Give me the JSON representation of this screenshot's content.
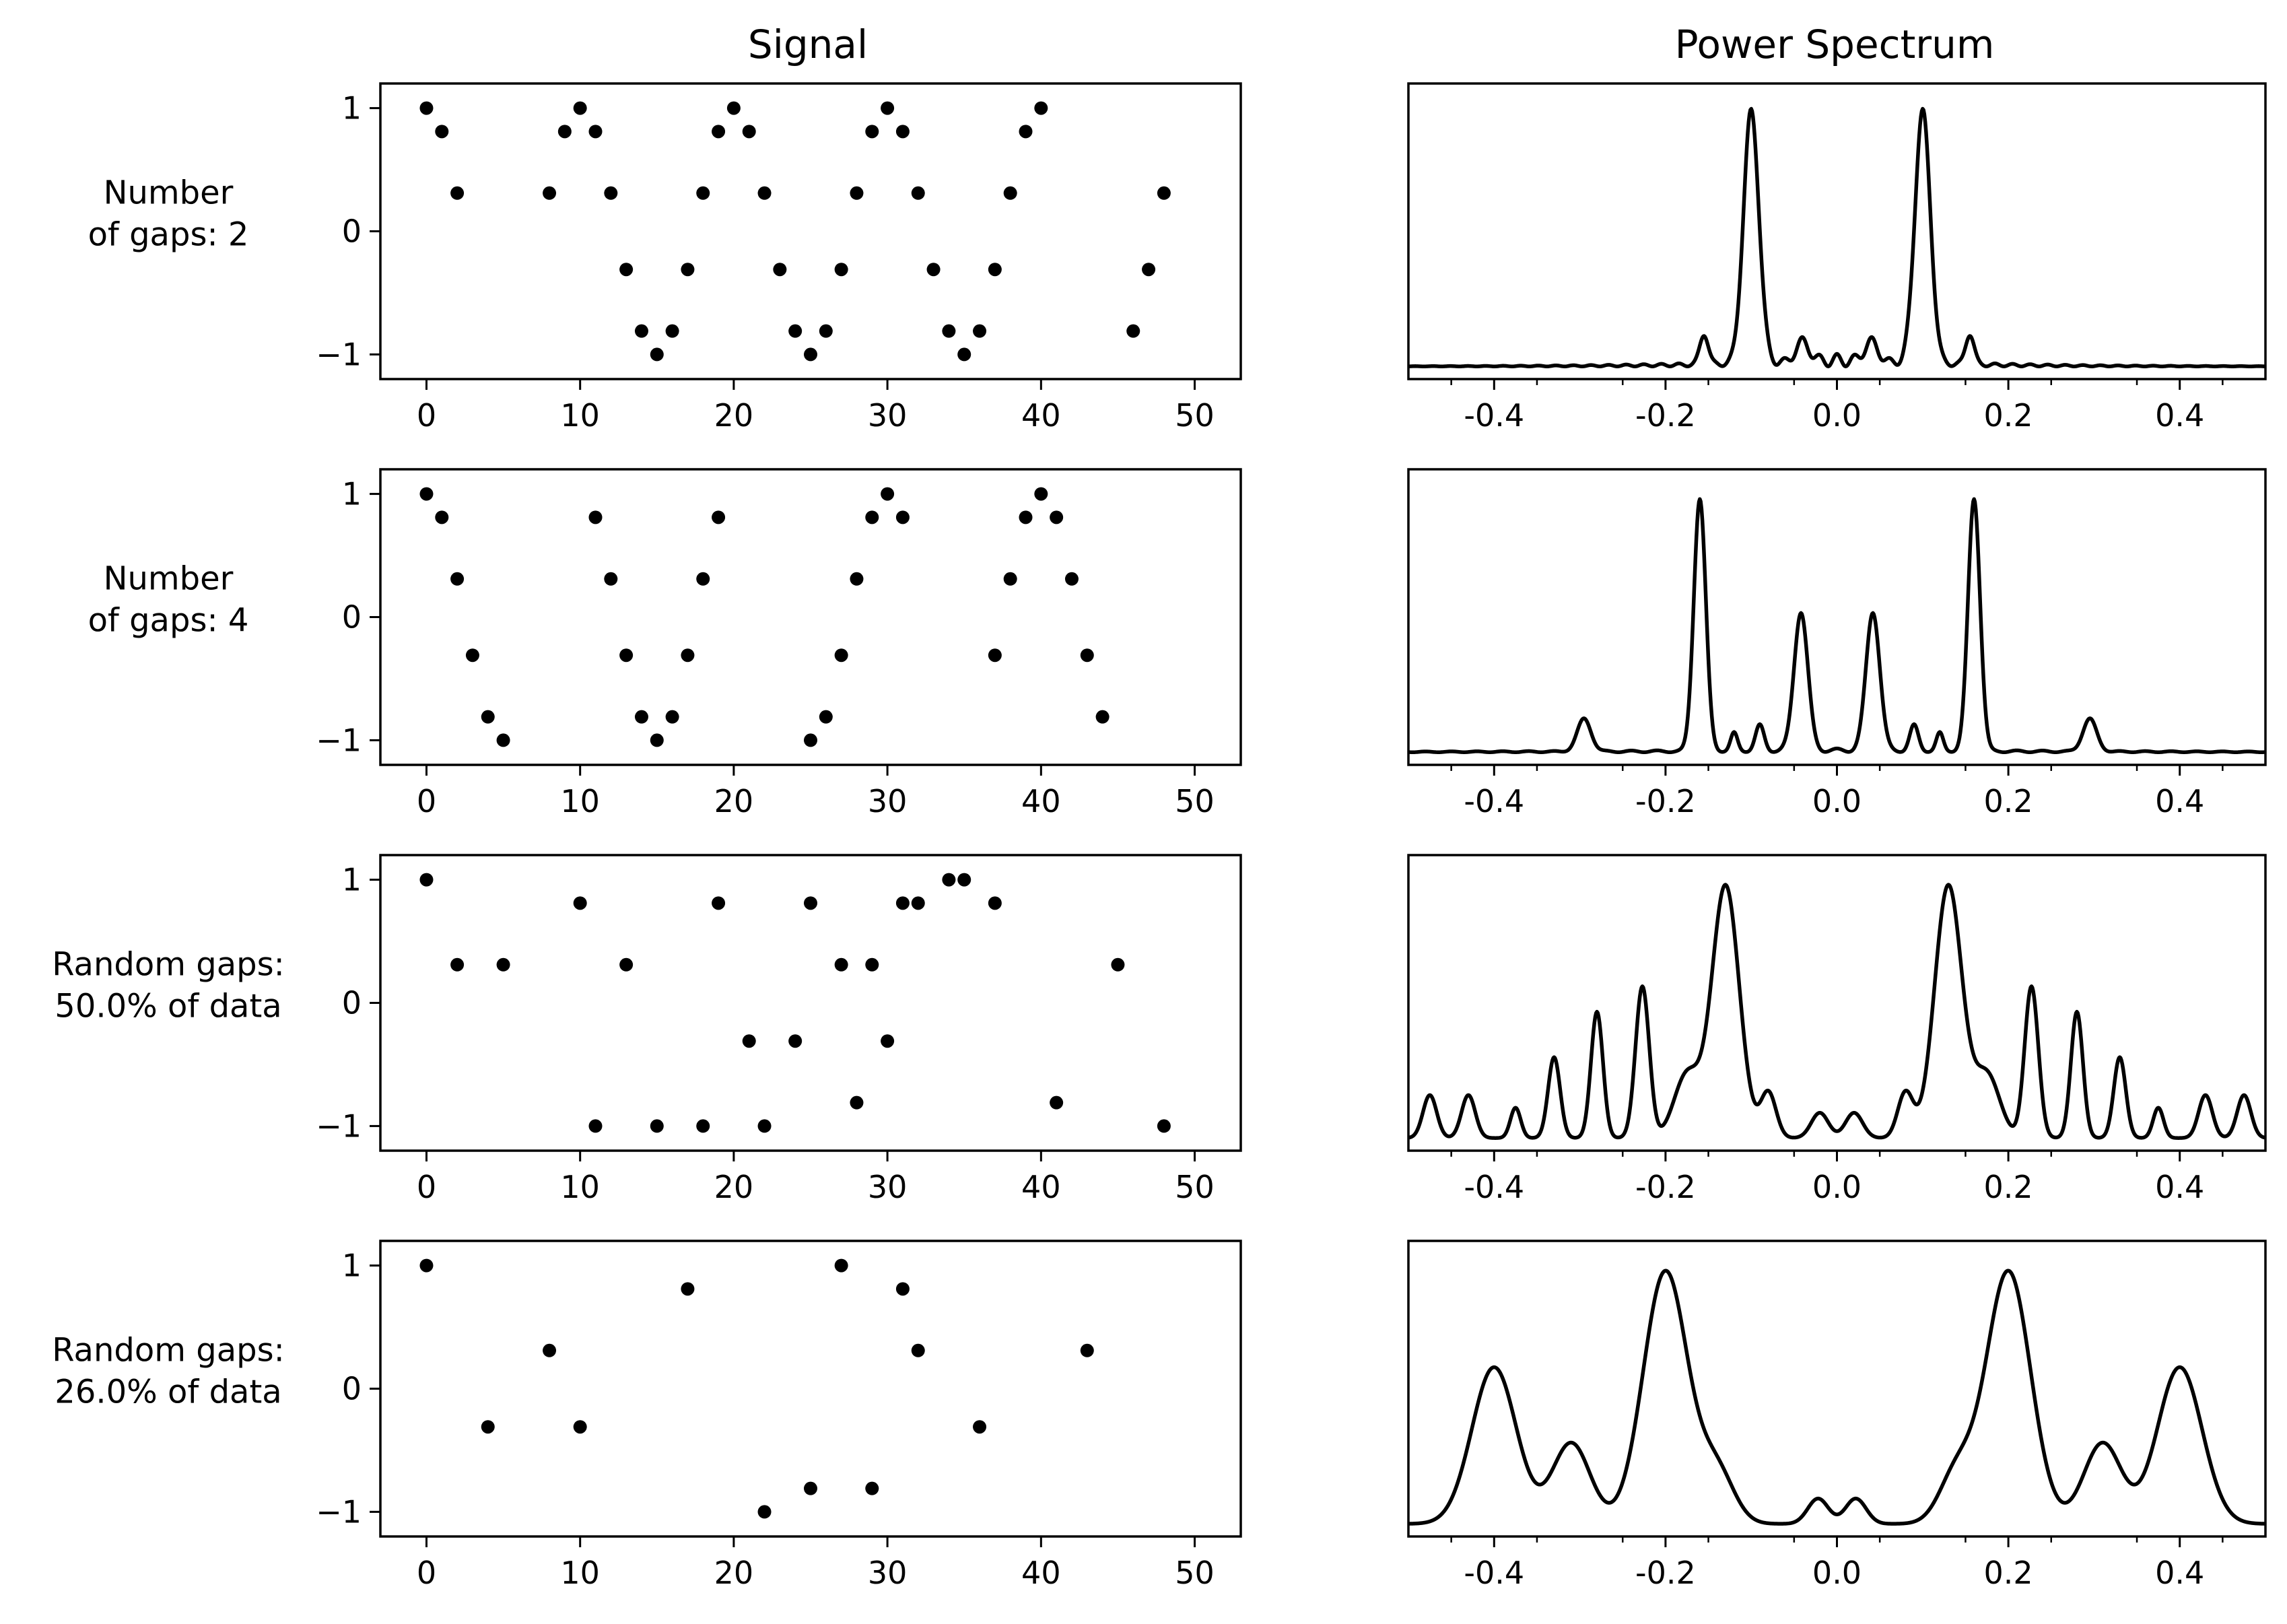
{
  "column_titles": [
    "Signal",
    "Power Spectrum"
  ],
  "chart_data": [
    {
      "type": "scatter",
      "row_label": "Number\nof gaps: 2",
      "xlim": [
        -3,
        53
      ],
      "ylim": [
        -1.2,
        1.2
      ],
      "xticks": [
        0,
        10,
        20,
        30,
        40,
        50
      ],
      "yticks": [
        -1,
        0,
        1
      ],
      "ytick_labels": [
        "−1",
        "0",
        "1"
      ],
      "x": [
        0,
        1,
        2,
        8,
        9,
        10,
        11,
        12,
        13,
        14,
        15,
        16,
        17,
        18,
        19,
        20,
        21,
        22,
        23,
        24,
        25,
        26,
        27,
        28,
        29,
        30,
        31,
        32,
        33,
        34,
        35,
        36,
        37,
        38,
        39,
        40,
        46,
        47,
        48
      ],
      "y": [
        1,
        0.81,
        0.31,
        0.31,
        0.81,
        1,
        0.81,
        0.31,
        -0.31,
        -0.81,
        -1,
        -0.81,
        -0.31,
        0.31,
        0.81,
        1,
        0.81,
        0.31,
        -0.31,
        -0.81,
        -1,
        -0.81,
        -0.31,
        0.31,
        0.81,
        1,
        0.81,
        0.31,
        -0.31,
        -0.81,
        -1,
        -0.81,
        -0.31,
        0.31,
        0.81,
        1,
        -0.81,
        -0.31,
        0.31
      ]
    },
    {
      "type": "line",
      "row_label": "Number\nof gaps: 2",
      "xlim": [
        -0.5,
        0.5
      ],
      "ylim": [
        0,
        1.17
      ],
      "xticks": [
        -0.4,
        -0.2,
        0.0,
        0.2,
        0.4
      ],
      "xtick_labels": [
        "-0.4",
        "-0.2",
        "0.0",
        "0.2",
        "0.4"
      ],
      "peaks": [
        {
          "f": 0.1,
          "a": 1.0,
          "w": 0.009
        },
        {
          "f": -0.1,
          "a": 1.0,
          "w": 0.009
        },
        {
          "f": 0.155,
          "a": 0.12,
          "w": 0.005
        },
        {
          "f": -0.155,
          "a": 0.12,
          "w": 0.005
        },
        {
          "f": 0.04,
          "a": 0.08,
          "w": 0.008
        },
        {
          "f": -0.04,
          "a": 0.08,
          "w": 0.008
        }
      ],
      "floor": 0.05,
      "ripple": {
        "amp": 0.05,
        "period": 0.0205,
        "decay": 0.13
      }
    },
    {
      "type": "scatter",
      "row_label": "Number\nof gaps: 4",
      "xlim": [
        -3,
        53
      ],
      "ylim": [
        -1.2,
        1.2
      ],
      "xticks": [
        0,
        10,
        20,
        30,
        40,
        50
      ],
      "yticks": [
        -1,
        0,
        1
      ],
      "ytick_labels": [
        "−1",
        "0",
        "1"
      ],
      "x": [
        0,
        1,
        2,
        3,
        4,
        5,
        11,
        12,
        13,
        14,
        15,
        16,
        17,
        18,
        19,
        25,
        26,
        27,
        28,
        29,
        30,
        31,
        37,
        38,
        39,
        40,
        41,
        42,
        43,
        44
      ],
      "y": [
        1,
        0.81,
        0.31,
        -0.31,
        -0.81,
        -1,
        0.81,
        0.31,
        -0.31,
        -0.81,
        -1,
        -0.81,
        -0.31,
        0.31,
        0.81,
        -1,
        -0.81,
        -0.31,
        0.31,
        0.81,
        1,
        0.81,
        -0.31,
        0.31,
        0.81,
        1,
        0.81,
        0.31,
        -0.31,
        -0.81
      ]
    },
    {
      "type": "line",
      "row_label": "Number\nof gaps: 4",
      "xlim": [
        -0.5,
        0.5
      ],
      "ylim": [
        0,
        1.17
      ],
      "xticks": [
        -0.4,
        -0.2,
        0.0,
        0.2,
        0.4
      ],
      "xtick_labels": [
        "-0.4",
        "-0.2",
        "0.0",
        "0.2",
        "0.4"
      ],
      "peaks": [
        {
          "f": 0.16,
          "a": 1.0,
          "w": 0.007
        },
        {
          "f": -0.16,
          "a": 1.0,
          "w": 0.007
        },
        {
          "f": 0.042,
          "a": 0.55,
          "w": 0.008
        },
        {
          "f": -0.042,
          "a": 0.55,
          "w": 0.008
        },
        {
          "f": 0.295,
          "a": 0.13,
          "w": 0.008
        },
        {
          "f": -0.295,
          "a": 0.13,
          "w": 0.008
        },
        {
          "f": 0.09,
          "a": 0.1,
          "w": 0.005
        },
        {
          "f": -0.09,
          "a": 0.1,
          "w": 0.005
        },
        {
          "f": 0.12,
          "a": 0.07,
          "w": 0.004
        },
        {
          "f": -0.12,
          "a": 0.07,
          "w": 0.004
        }
      ],
      "floor": 0.05,
      "ripple": {
        "amp": 0.015,
        "period": 0.03,
        "decay": 0.3
      }
    },
    {
      "type": "scatter",
      "row_label": "Random gaps:\n50.0% of data",
      "xlim": [
        -3,
        53
      ],
      "ylim": [
        -1.2,
        1.2
      ],
      "xticks": [
        0,
        10,
        20,
        30,
        40,
        50
      ],
      "yticks": [
        -1,
        0,
        1
      ],
      "ytick_labels": [
        "−1",
        "0",
        "1"
      ],
      "x": [
        0,
        2,
        5,
        10,
        11,
        13,
        15,
        18,
        19,
        21,
        22,
        24,
        25,
        27,
        28,
        29,
        30,
        31,
        32,
        34,
        35,
        37,
        41,
        45,
        48
      ],
      "y": [
        1,
        0.31,
        0.31,
        0.81,
        -1,
        0.31,
        -1,
        -1,
        0.81,
        -0.31,
        -1,
        -0.31,
        0.81,
        0.31,
        -0.81,
        0.31,
        -0.31,
        0.81,
        0.81,
        1,
        1,
        0.81,
        -0.81,
        0.31,
        -1
      ]
    },
    {
      "type": "line",
      "row_label": "Random gaps:\n50.0% of data",
      "xlim": [
        -0.5,
        0.5
      ],
      "ylim": [
        0,
        1.17
      ],
      "xticks": [
        -0.4,
        -0.2,
        0.0,
        0.2,
        0.4
      ],
      "xtick_labels": [
        "-0.4",
        "-0.2",
        "0.0",
        "0.2",
        "0.4"
      ],
      "peaks": [
        {
          "f": 0.13,
          "a": 1.0,
          "w": 0.016
        },
        {
          "f": -0.13,
          "a": 1.0,
          "w": 0.016
        },
        {
          "f": 0.227,
          "a": 0.6,
          "w": 0.008
        },
        {
          "f": -0.227,
          "a": 0.6,
          "w": 0.008
        },
        {
          "f": 0.28,
          "a": 0.5,
          "w": 0.007
        },
        {
          "f": -0.28,
          "a": 0.5,
          "w": 0.007
        },
        {
          "f": 0.33,
          "a": 0.32,
          "w": 0.007
        },
        {
          "f": -0.33,
          "a": 0.32,
          "w": 0.007
        },
        {
          "f": 0.375,
          "a": 0.12,
          "w": 0.006
        },
        {
          "f": -0.375,
          "a": 0.12,
          "w": 0.006
        },
        {
          "f": 0.43,
          "a": 0.17,
          "w": 0.008
        },
        {
          "f": -0.43,
          "a": 0.17,
          "w": 0.008
        },
        {
          "f": 0.475,
          "a": 0.17,
          "w": 0.008
        },
        {
          "f": -0.475,
          "a": 0.17,
          "w": 0.008
        },
        {
          "f": 0.08,
          "a": 0.18,
          "w": 0.009
        },
        {
          "f": -0.08,
          "a": 0.18,
          "w": 0.009
        },
        {
          "f": 0.02,
          "a": 0.1,
          "w": 0.01
        },
        {
          "f": -0.02,
          "a": 0.1,
          "w": 0.01
        },
        {
          "f": 0.175,
          "a": 0.25,
          "w": 0.015
        },
        {
          "f": -0.175,
          "a": 0.25,
          "w": 0.015
        }
      ],
      "floor": 0.05,
      "ripple": {
        "amp": 0.0,
        "period": 0.05,
        "decay": 1
      }
    },
    {
      "type": "scatter",
      "row_label": "Random gaps:\n26.0% of data",
      "xlim": [
        -3,
        53
      ],
      "ylim": [
        -1.2,
        1.2
      ],
      "xticks": [
        0,
        10,
        20,
        30,
        40,
        50
      ],
      "yticks": [
        -1,
        0,
        1
      ],
      "ytick_labels": [
        "−1",
        "0",
        "1"
      ],
      "x": [
        0,
        4,
        8,
        10,
        17,
        22,
        25,
        27,
        29,
        31,
        32,
        36,
        43
      ],
      "y": [
        1,
        -0.31,
        0.31,
        -0.31,
        0.81,
        -1,
        -0.81,
        1,
        -0.81,
        0.81,
        0.31,
        -0.31,
        0.31
      ]
    },
    {
      "type": "line",
      "row_label": "Random gaps:\n26.0% of data",
      "xlim": [
        -0.5,
        0.5
      ],
      "ylim": [
        0,
        1.17
      ],
      "xticks": [
        -0.4,
        -0.2,
        0.0,
        0.2,
        0.4
      ],
      "xtick_labels": [
        "-0.4",
        "-0.2",
        "0.0",
        "0.2",
        "0.4"
      ],
      "peaks": [
        {
          "f": 0.2,
          "a": 1.0,
          "w": 0.026
        },
        {
          "f": -0.2,
          "a": 1.0,
          "w": 0.026
        },
        {
          "f": 0.4,
          "a": 0.62,
          "w": 0.026
        },
        {
          "f": -0.4,
          "a": 0.62,
          "w": 0.026
        },
        {
          "f": 0.31,
          "a": 0.32,
          "w": 0.022
        },
        {
          "f": -0.31,
          "a": 0.32,
          "w": 0.022
        },
        {
          "f": 0.14,
          "a": 0.2,
          "w": 0.02
        },
        {
          "f": -0.14,
          "a": 0.2,
          "w": 0.02
        },
        {
          "f": 0.022,
          "a": 0.1,
          "w": 0.012
        },
        {
          "f": -0.022,
          "a": 0.1,
          "w": 0.012
        }
      ],
      "floor": 0.05,
      "ripple": {
        "amp": 0.0,
        "period": 0.05,
        "decay": 1
      }
    }
  ]
}
